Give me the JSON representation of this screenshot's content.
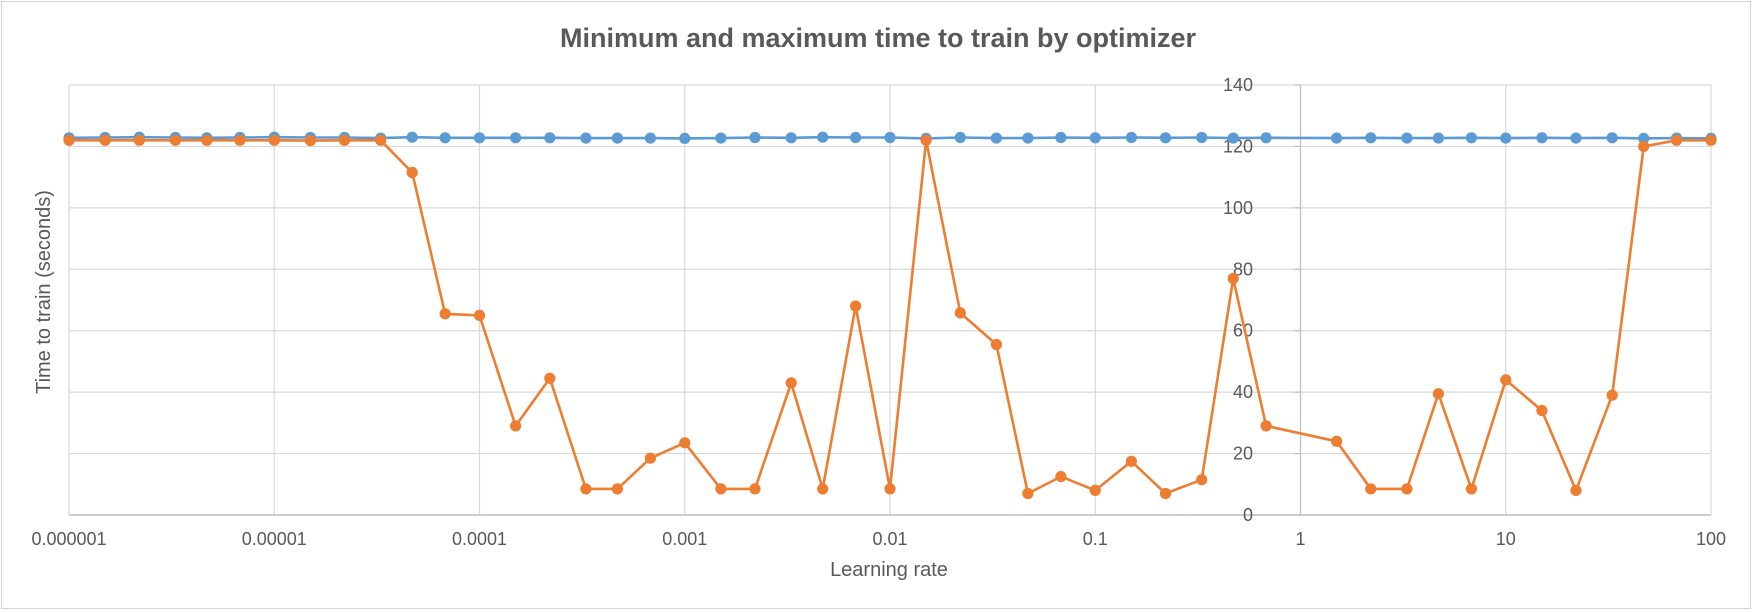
{
  "chart_data": {
    "type": "line",
    "title": "Minimum and maximum time to train by optimizer",
    "xlabel": "Learning rate",
    "ylabel": "Time to train (seconds)",
    "x_scale": "log",
    "xlim": [
      1e-06,
      100
    ],
    "ylim": [
      0,
      140
    ],
    "x_ticks": [
      {
        "value": 1e-06,
        "label": "0.000001"
      },
      {
        "value": 1e-05,
        "label": "0.00001"
      },
      {
        "value": 0.0001,
        "label": "0.0001"
      },
      {
        "value": 0.001,
        "label": "0.001"
      },
      {
        "value": 0.01,
        "label": "0.01"
      },
      {
        "value": 0.1,
        "label": "0.1"
      },
      {
        "value": 1,
        "label": "1"
      },
      {
        "value": 10,
        "label": "10"
      },
      {
        "value": 100,
        "label": "100"
      }
    ],
    "y_ticks": [
      0,
      20,
      40,
      60,
      80,
      100,
      120,
      140
    ],
    "grid": true,
    "colors": {
      "series_max": "#5b9bd5",
      "series_min": "#ed7d31",
      "grid": "#d9d9d9",
      "text": "#595959"
    },
    "series": [
      {
        "x": [
          1e-06,
          1.5e-06,
          2.2e-06,
          3.3e-06,
          4.7e-06,
          6.8e-06,
          1e-05,
          1.5e-05,
          2.2e-05,
          3.3e-05,
          4.7e-05,
          6.8e-05,
          0.0001,
          0.00015,
          0.00022,
          0.00033,
          0.00047,
          0.00068,
          0.001,
          0.0015,
          0.0022,
          0.0033,
          0.0047,
          0.0068,
          0.01,
          0.015,
          0.022,
          0.033,
          0.047,
          0.068,
          0.1,
          0.15,
          0.22,
          0.33,
          0.47,
          0.68,
          1.5,
          2.2,
          3.3,
          4.7,
          6.8,
          10,
          15,
          22,
          33,
          47,
          68,
          100
        ],
        "values": [
          122.8,
          122.9,
          123.0,
          122.9,
          122.8,
          122.9,
          123.0,
          122.9,
          122.9,
          122.7,
          123.0,
          122.8,
          122.8,
          122.8,
          122.8,
          122.7,
          122.7,
          122.7,
          122.6,
          122.7,
          122.9,
          122.8,
          123.0,
          122.9,
          122.9,
          122.6,
          122.9,
          122.7,
          122.7,
          122.9,
          122.8,
          122.9,
          122.8,
          122.9,
          122.7,
          122.8,
          122.7,
          122.8,
          122.7,
          122.7,
          122.8,
          122.7,
          122.8,
          122.7,
          122.8,
          122.6,
          122.7,
          122.6
        ]
      },
      {
        "x": [
          1e-06,
          1.5e-06,
          2.2e-06,
          3.3e-06,
          4.7e-06,
          6.8e-06,
          1e-05,
          1.5e-05,
          2.2e-05,
          3.3e-05,
          4.7e-05,
          6.8e-05,
          0.0001,
          0.00015,
          0.00022,
          0.00033,
          0.00047,
          0.00068,
          0.001,
          0.0015,
          0.0022,
          0.0033,
          0.0047,
          0.0068,
          0.01,
          0.015,
          0.022,
          0.033,
          0.047,
          0.068,
          0.1,
          0.15,
          0.22,
          0.33,
          0.47,
          0.68,
          1.5,
          2.2,
          3.3,
          4.7,
          6.8,
          10,
          15,
          22,
          33,
          47,
          68,
          100
        ],
        "values": [
          122,
          122,
          122,
          122,
          122,
          122,
          122,
          121.9,
          122,
          122,
          111.5,
          65.5,
          65,
          29,
          44.5,
          8.5,
          8.5,
          18.5,
          23.5,
          8.5,
          8.5,
          43,
          8.5,
          68,
          8.5,
          122,
          65.8,
          55.5,
          7,
          12.5,
          8,
          17.5,
          7,
          11.5,
          77,
          29,
          24,
          8.5,
          8.5,
          39.5,
          8.5,
          44,
          34,
          8,
          39,
          120,
          122,
          122
        ]
      }
    ]
  }
}
